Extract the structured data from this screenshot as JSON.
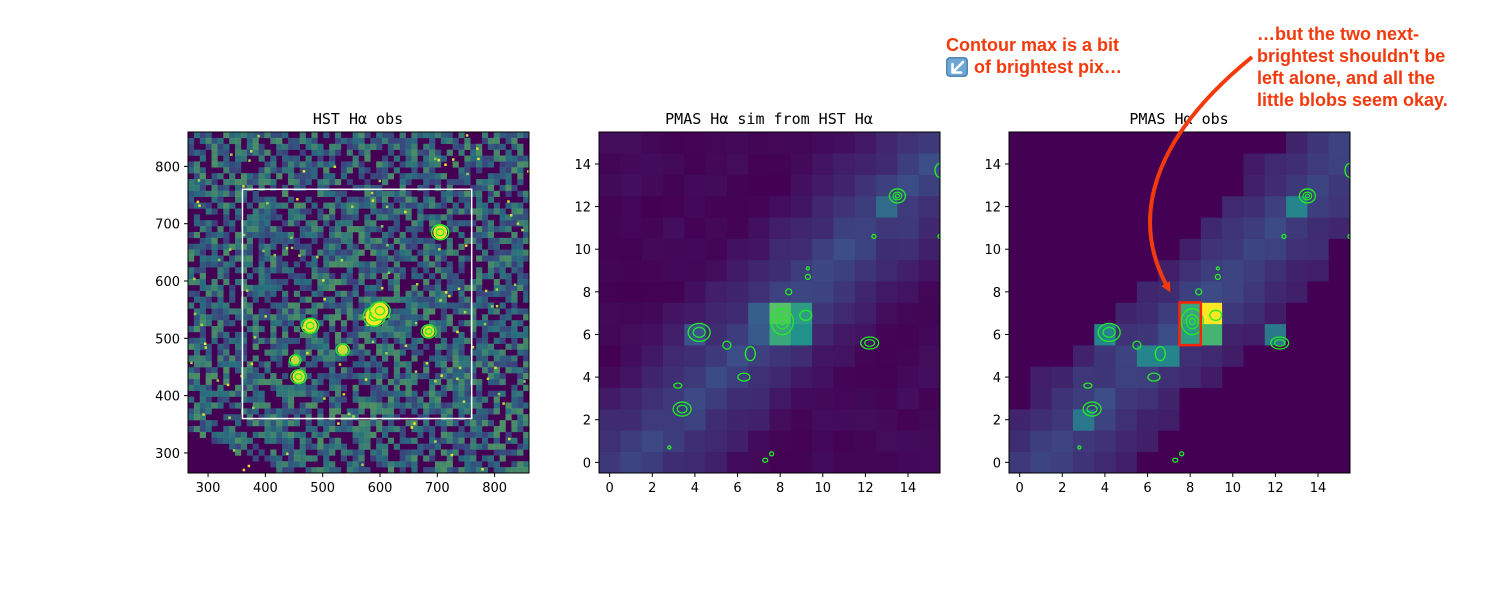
{
  "chart_data": [
    {
      "type": "heatmap",
      "title": "HST Hα obs",
      "xlim": [
        265,
        860
      ],
      "ylim": [
        265,
        860
      ],
      "x_ticks": [
        "300",
        "400",
        "500",
        "600",
        "700",
        "800"
      ],
      "y_ticks": [
        "300",
        "400",
        "500",
        "600",
        "700",
        "800"
      ],
      "colormap": "viridis",
      "box": {
        "x": [
          360,
          760
        ],
        "y": [
          360,
          760
        ],
        "color": "#ffffff"
      },
      "contour_color": "#22ee22",
      "bright_sources": [
        {
          "x": 590,
          "y": 538,
          "peak": 1.0
        },
        {
          "x": 600,
          "y": 548,
          "peak": 0.9
        },
        {
          "x": 478,
          "y": 522,
          "peak": 0.7
        },
        {
          "x": 705,
          "y": 685,
          "peak": 0.7
        },
        {
          "x": 685,
          "y": 512,
          "peak": 0.55
        },
        {
          "x": 458,
          "y": 433,
          "peak": 0.6
        },
        {
          "x": 535,
          "y": 480,
          "peak": 0.45
        },
        {
          "x": 452,
          "y": 462,
          "peak": 0.35
        }
      ]
    },
    {
      "type": "heatmap",
      "title": "PMAS Hα sim from HST Hα",
      "xlim": [
        -0.5,
        15.5
      ],
      "ylim": [
        -0.5,
        15.5
      ],
      "x_ticks": [
        "0",
        "2",
        "4",
        "6",
        "8",
        "10",
        "12",
        "14"
      ],
      "y_ticks": [
        "0",
        "2",
        "4",
        "6",
        "8",
        "10",
        "12",
        "14"
      ],
      "colormap": "viridis",
      "contour_color": "#22ee22",
      "bright_pixels": [
        {
          "x": 8,
          "y": 7,
          "v": 0.72
        },
        {
          "x": 8,
          "y": 6,
          "v": 0.6
        },
        {
          "x": 9,
          "y": 7,
          "v": 0.55
        },
        {
          "x": 9,
          "y": 6,
          "v": 0.5
        },
        {
          "x": 7,
          "y": 7,
          "v": 0.3
        },
        {
          "x": 7,
          "y": 6,
          "v": 0.28
        },
        {
          "x": 13,
          "y": 12,
          "v": 0.35
        },
        {
          "x": 4,
          "y": 6,
          "v": 0.25
        },
        {
          "x": 3,
          "y": 2,
          "v": 0.18
        }
      ]
    },
    {
      "type": "heatmap",
      "title": "PMAS Hα obs",
      "xlim": [
        -0.5,
        15.5
      ],
      "ylim": [
        -0.5,
        15.5
      ],
      "x_ticks": [
        "0",
        "2",
        "4",
        "6",
        "8",
        "10",
        "12",
        "14"
      ],
      "y_ticks": [
        "0",
        "2",
        "4",
        "6",
        "8",
        "10",
        "12",
        "14"
      ],
      "colormap": "viridis",
      "contour_color": "#22ee22",
      "highlight_box": {
        "x": [
          7.5,
          8.5
        ],
        "y": [
          5.5,
          7.5
        ],
        "color": "#ff2200"
      },
      "bright_pixels": [
        {
          "x": 9,
          "y": 7,
          "v": 1.0
        },
        {
          "x": 9,
          "y": 6,
          "v": 0.65
        },
        {
          "x": 8,
          "y": 7,
          "v": 0.6
        },
        {
          "x": 8,
          "y": 6,
          "v": 0.55
        },
        {
          "x": 7,
          "y": 5,
          "v": 0.45
        },
        {
          "x": 6,
          "y": 5,
          "v": 0.45
        },
        {
          "x": 4,
          "y": 6,
          "v": 0.45
        },
        {
          "x": 3,
          "y": 2,
          "v": 0.4
        },
        {
          "x": 12,
          "y": 6,
          "v": 0.4
        },
        {
          "x": 13,
          "y": 12,
          "v": 0.45
        }
      ]
    }
  ],
  "annotations": {
    "left_lines": [
      "Contour max is a bit",
      "of brightest pix…"
    ],
    "left_icon": "arrow-down-left-emoji-icon",
    "right_lines": [
      "…but the two next-",
      "brightest shouldn't be",
      "left alone, and all the",
      "little blobs seem okay."
    ],
    "color": "#f23a0c"
  }
}
